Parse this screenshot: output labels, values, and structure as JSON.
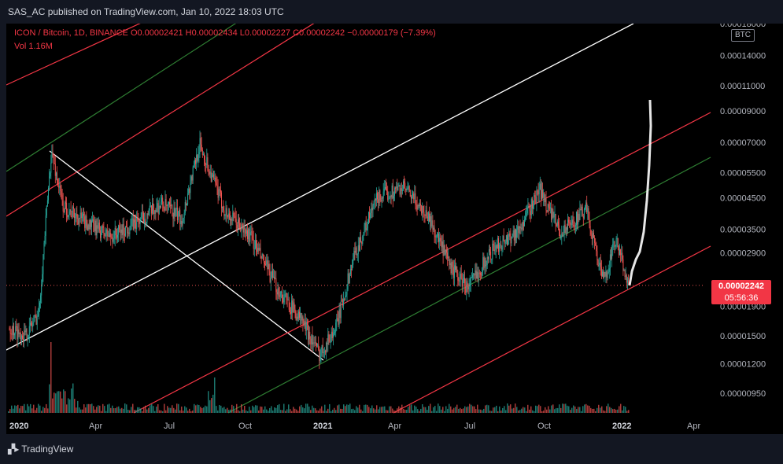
{
  "header": {
    "published": "SAS_AC published on TradingView.com, Jan 10, 2022 18:03 UTC"
  },
  "legend": {
    "symbol": "ICON / Bitcoin, 1D, BINANCE",
    "open": "O0.00002421",
    "high": "H0.00002434",
    "low": "L0.00002227",
    "close": "C0.00002242",
    "change": "−0.00000179 (−7.39%)",
    "volume_label": "Vol",
    "volume_value": "1.16M"
  },
  "currency": "BTC",
  "price_tag": {
    "value": "0.00002242",
    "countdown": "05:56:36"
  },
  "colors": {
    "background": "#000000",
    "up": "#26a69a",
    "down": "#ef5350",
    "channel_red": "#f23645",
    "channel_green": "#2e7d32",
    "white_line": "#ffffff"
  },
  "y_axis": {
    "ticks": [
      "0.00018000",
      "0.00014000",
      "0.00011000",
      "0.00009000",
      "0.00007000",
      "0.00005500",
      "0.00004500",
      "0.00003500",
      "0.00002900",
      "0.00001900",
      "0.00001500",
      "0.00001200",
      "0.00000950"
    ],
    "tick_values": [
      0.00018,
      0.00014,
      0.00011,
      9e-05,
      7e-05,
      5.5e-05,
      4.5e-05,
      3.5e-05,
      2.9e-05,
      1.9e-05,
      1.5e-05,
      1.2e-05,
      9.5e-06
    ],
    "scale": "log"
  },
  "x_axis": {
    "ticks": [
      {
        "label": "2020",
        "year": true
      },
      {
        "label": "Apr",
        "year": false
      },
      {
        "label": "Jul",
        "year": false
      },
      {
        "label": "Oct",
        "year": false
      },
      {
        "label": "2021",
        "year": true
      },
      {
        "label": "Apr",
        "year": false
      },
      {
        "label": "Jul",
        "year": false
      },
      {
        "label": "Oct",
        "year": false
      },
      {
        "label": "2022",
        "year": true
      },
      {
        "label": "Apr",
        "year": false
      }
    ]
  },
  "chart_data": {
    "type": "line",
    "scale": "log",
    "ylim": [
      9e-06,
      0.00018
    ],
    "price_path": [
      [
        "2020-01-01",
        1.6e-05
      ],
      [
        "2020-01-20",
        1.5e-05
      ],
      [
        "2020-02-05",
        1.8e-05
      ],
      [
        "2020-02-20",
        6.5e-05
      ],
      [
        "2020-03-05",
        4.2e-05
      ],
      [
        "2020-04-01",
        3.7e-05
      ],
      [
        "2020-05-01",
        3.3e-05
      ],
      [
        "2020-06-01",
        3.7e-05
      ],
      [
        "2020-07-01",
        4.3e-05
      ],
      [
        "2020-07-25",
        3.8e-05
      ],
      [
        "2020-08-15",
        6.9e-05
      ],
      [
        "2020-09-15",
        4e-05
      ],
      [
        "2020-10-15",
        3.3e-05
      ],
      [
        "2020-11-15",
        2.2e-05
      ],
      [
        "2020-12-15",
        1.7e-05
      ],
      [
        "2021-01-05",
        1.3e-05
      ],
      [
        "2021-01-25",
        1.6e-05
      ],
      [
        "2021-02-15",
        2.8e-05
      ],
      [
        "2021-03-15",
        4.5e-05
      ],
      [
        "2021-04-15",
        4.9e-05
      ],
      [
        "2021-05-15",
        3.9e-05
      ],
      [
        "2021-06-10",
        2.6e-05
      ],
      [
        "2021-07-01",
        2.2e-05
      ],
      [
        "2021-08-01",
        3e-05
      ],
      [
        "2021-09-01",
        3.5e-05
      ],
      [
        "2021-09-25",
        4.8e-05
      ],
      [
        "2021-10-20",
        3.4e-05
      ],
      [
        "2021-11-20",
        4.1e-05
      ],
      [
        "2021-12-10",
        2.3e-05
      ],
      [
        "2021-12-25",
        3.2e-05
      ],
      [
        "2022-01-10",
        2.24e-05
      ]
    ],
    "current_price": 2.242e-05
  }
}
